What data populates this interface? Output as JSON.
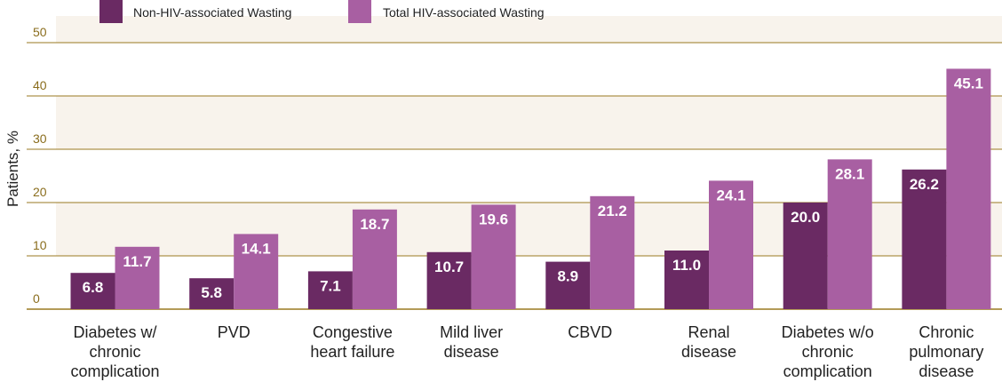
{
  "chart_data": {
    "type": "bar",
    "ylabel": "Patients, %",
    "xlabel": "",
    "ylim": [
      0,
      55
    ],
    "yticks": [
      0,
      10,
      20,
      30,
      40,
      50
    ],
    "grid": true,
    "legend_position": "top-left",
    "categories": [
      [
        "Diabetes w/",
        "chronic",
        "complication"
      ],
      [
        "PVD"
      ],
      [
        "Congestive",
        "heart failure"
      ],
      [
        "Mild liver",
        "disease"
      ],
      [
        "CBVD"
      ],
      [
        "Renal",
        "disease"
      ],
      [
        "Diabetes w/o",
        "chronic",
        "complication"
      ],
      [
        "Chronic",
        "pulmonary",
        "disease"
      ]
    ],
    "series": [
      {
        "name": "Non-HIV-associated Wasting",
        "color": "#6a2a63",
        "values": [
          6.8,
          5.8,
          7.1,
          10.7,
          8.9,
          11.0,
          20.0,
          26.2
        ],
        "labels": [
          "6.8",
          "5.8",
          "7.1",
          "10.7",
          "8.9",
          "11.0",
          "20.0",
          "26.2"
        ]
      },
      {
        "name": "Total HIV-associated Wasting",
        "color": "#a85fa2",
        "values": [
          11.7,
          14.1,
          18.7,
          19.6,
          21.2,
          24.1,
          28.1,
          45.1
        ],
        "labels": [
          "11.7",
          "14.1",
          "18.7",
          "19.6",
          "21.2",
          "24.1",
          "28.1",
          "45.1"
        ]
      }
    ],
    "colors": {
      "band": "#f8f3ec",
      "gridline": "#9a7a20",
      "tick_text": "#8a6d1d"
    }
  }
}
